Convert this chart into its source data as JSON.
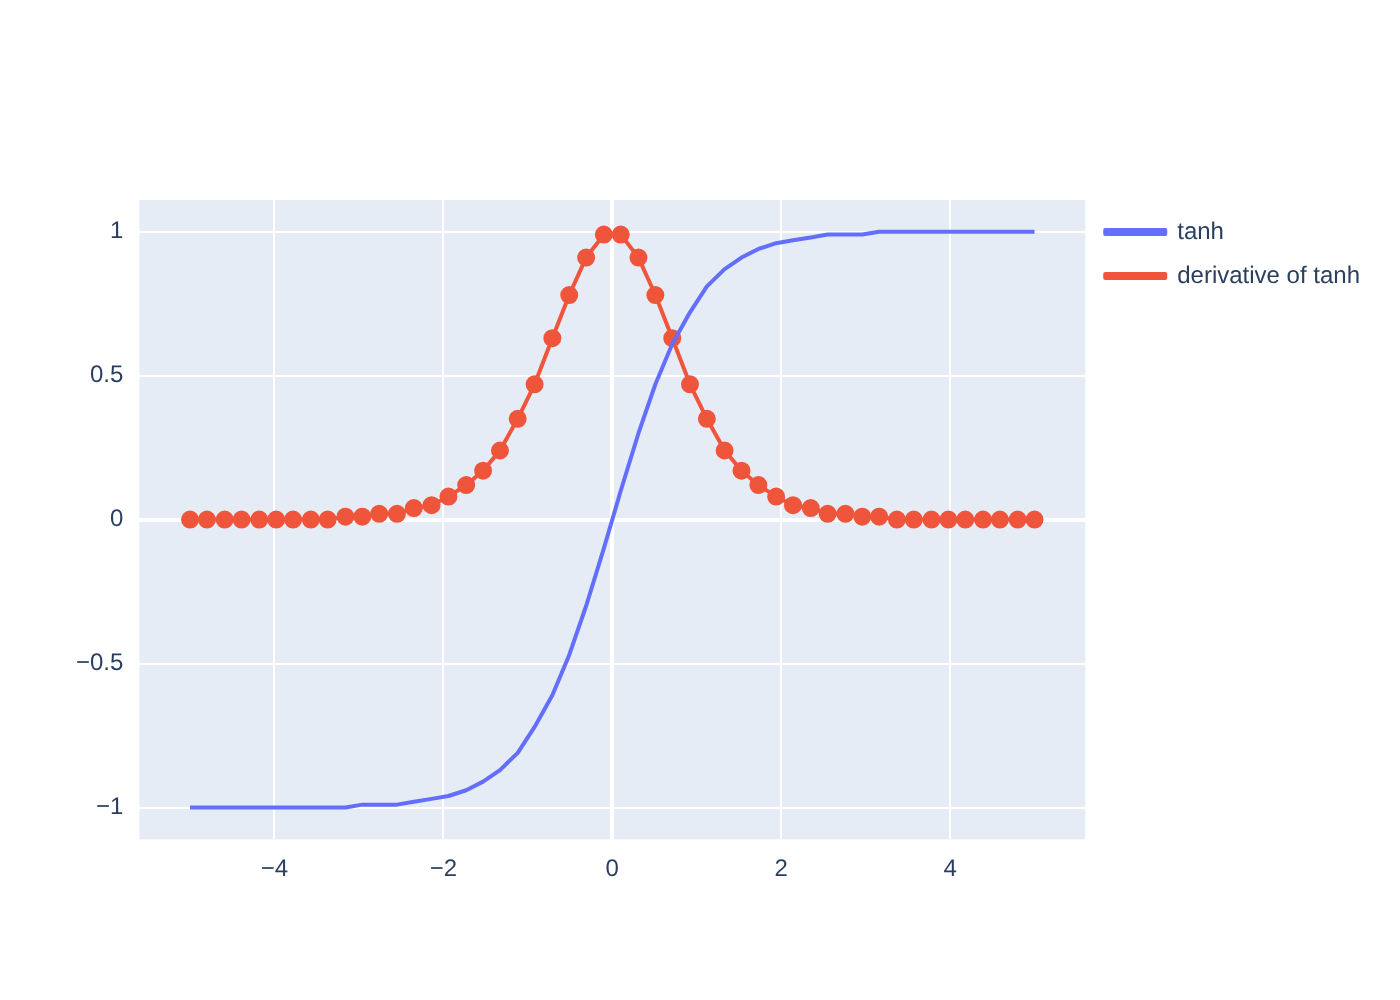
{
  "chart_data": {
    "type": "line",
    "x": [
      -5.0,
      -4.8,
      -4.59,
      -4.39,
      -4.18,
      -3.98,
      -3.78,
      -3.57,
      -3.37,
      -3.16,
      -2.96,
      -2.76,
      -2.55,
      -2.35,
      -2.14,
      -1.94,
      -1.73,
      -1.53,
      -1.33,
      -1.12,
      -0.92,
      -0.71,
      -0.51,
      -0.31,
      -0.1,
      0.1,
      0.31,
      0.51,
      0.71,
      0.92,
      1.12,
      1.33,
      1.53,
      1.73,
      1.94,
      2.14,
      2.35,
      2.55,
      2.76,
      2.96,
      3.16,
      3.37,
      3.57,
      3.78,
      3.98,
      4.18,
      4.39,
      4.59,
      4.8,
      5.0
    ],
    "series": [
      {
        "name": "tanh",
        "color": "#636efa",
        "marker": "none",
        "values": [
          -1.0,
          -1.0,
          -1.0,
          -1.0,
          -1.0,
          -1.0,
          -1.0,
          -1.0,
          -1.0,
          -1.0,
          -0.99,
          -0.99,
          -0.99,
          -0.98,
          -0.97,
          -0.96,
          -0.94,
          -0.91,
          -0.87,
          -0.81,
          -0.72,
          -0.61,
          -0.47,
          -0.3,
          -0.1,
          0.1,
          0.3,
          0.47,
          0.61,
          0.72,
          0.81,
          0.87,
          0.91,
          0.94,
          0.96,
          0.97,
          0.98,
          0.99,
          0.99,
          0.99,
          1.0,
          1.0,
          1.0,
          1.0,
          1.0,
          1.0,
          1.0,
          1.0,
          1.0,
          1.0
        ]
      },
      {
        "name": "derivative of tanh",
        "color": "#ef553b",
        "marker": "circle",
        "values": [
          0,
          0,
          0,
          0,
          0,
          0,
          0,
          0,
          0,
          0.01,
          0.01,
          0.02,
          0.02,
          0.04,
          0.05,
          0.08,
          0.12,
          0.17,
          0.24,
          0.35,
          0.47,
          0.63,
          0.78,
          0.91,
          0.99,
          0.99,
          0.91,
          0.78,
          0.63,
          0.47,
          0.35,
          0.24,
          0.17,
          0.12,
          0.08,
          0.05,
          0.04,
          0.02,
          0.02,
          0.01,
          0.01,
          0,
          0,
          0,
          0,
          0,
          0,
          0,
          0,
          0
        ]
      }
    ],
    "xlim": [
      -5.6,
      5.6
    ],
    "xticks": [
      {
        "value": -4,
        "label": "−4"
      },
      {
        "value": -2,
        "label": "−2"
      },
      0,
      2,
      4
    ],
    "ylim": [
      -1.11,
      1.11
    ],
    "yticks": [
      {
        "value": -1,
        "label": "−1"
      },
      {
        "value": -0.5,
        "label": "−0.5"
      },
      0,
      0.5,
      1
    ],
    "grid": true,
    "legend": "top right"
  }
}
